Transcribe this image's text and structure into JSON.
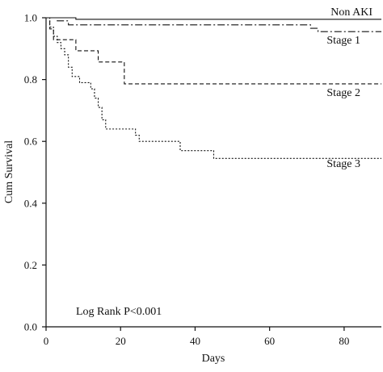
{
  "chart_data": {
    "type": "line",
    "step": true,
    "xlabel": "Days",
    "ylabel": "Cum Survival",
    "xlim": [
      0,
      90
    ],
    "ylim": [
      0.0,
      1.0
    ],
    "xticks": [
      0,
      20,
      40,
      60,
      80
    ],
    "yticks": [
      "0.0",
      "0.2",
      "0.4",
      "0.6",
      "0.8",
      "1.0"
    ],
    "grid": false,
    "annotation": "Log Rank P<0.001",
    "series": [
      {
        "name": "Non AKI",
        "line_style": "solid",
        "x": [
          0,
          8,
          90
        ],
        "y": [
          1.0,
          0.995,
          0.995
        ]
      },
      {
        "name": "Stage 1",
        "line_style": "dashdot",
        "x": [
          0,
          3,
          6,
          71,
          73,
          90
        ],
        "y": [
          1.0,
          0.99,
          0.977,
          0.966,
          0.955,
          0.955
        ]
      },
      {
        "name": "Stage 2",
        "line_style": "dashed",
        "x": [
          0,
          1,
          2,
          8,
          14,
          21,
          90
        ],
        "y": [
          1.0,
          0.964,
          0.929,
          0.893,
          0.857,
          0.786,
          0.786
        ]
      },
      {
        "name": "Stage 3",
        "line_style": "dotted",
        "x": [
          0,
          1,
          2,
          3,
          4,
          5,
          6,
          7,
          9,
          12,
          13,
          14,
          15,
          16,
          24,
          25,
          36,
          45,
          90
        ],
        "y": [
          1.0,
          0.97,
          0.94,
          0.92,
          0.9,
          0.88,
          0.84,
          0.81,
          0.79,
          0.77,
          0.74,
          0.71,
          0.67,
          0.64,
          0.62,
          0.6,
          0.57,
          0.545,
          0.545
        ]
      }
    ]
  }
}
